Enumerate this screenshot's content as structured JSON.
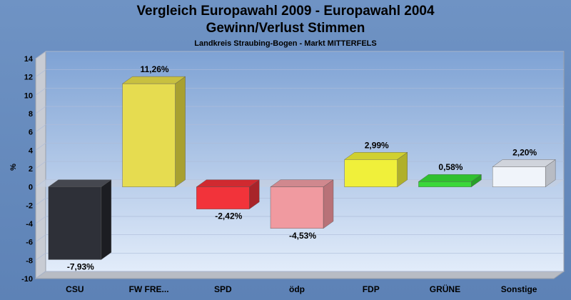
{
  "chart_data": {
    "type": "bar",
    "title_line1": "Vergleich Europawahl 2009 - Europawahl 2004",
    "title_line2": "Gewinn/Verlust Stimmen",
    "subtitle": "Landkreis Straubing-Bogen - Markt MITTERFELS",
    "ylabel": "%",
    "ylim": [
      -10,
      14
    ],
    "yticks": [
      14,
      12,
      10,
      8,
      6,
      4,
      2,
      0,
      -2,
      -4,
      -6,
      -8,
      -10
    ],
    "categories": [
      "CSU",
      "FW FRE...",
      "SPD",
      "ödp",
      "FDP",
      "GRÜNE",
      "Sonstige"
    ],
    "values": [
      -7.93,
      11.26,
      -2.42,
      -4.53,
      2.99,
      0.58,
      2.2
    ],
    "value_labels": [
      "-7,93%",
      "11,26%",
      "-2,42%",
      "-4,53%",
      "2,99%",
      "0,58%",
      "2,20%"
    ],
    "colors": [
      "#2e3038",
      "#e6dc50",
      "#f2333a",
      "#f09aa0",
      "#f0f03a",
      "#3ad83a",
      "#f0f4fa"
    ],
    "side_colors": [
      "#1c1d22",
      "#a8a030",
      "#a8242a",
      "#b87278",
      "#b0b02a",
      "#28a028",
      "#b8bcc4"
    ],
    "top_colors": [
      "#45474f",
      "#c8c040",
      "#d02a30",
      "#d0888e",
      "#d0d030",
      "#30c030",
      "#d0d4dc"
    ]
  }
}
